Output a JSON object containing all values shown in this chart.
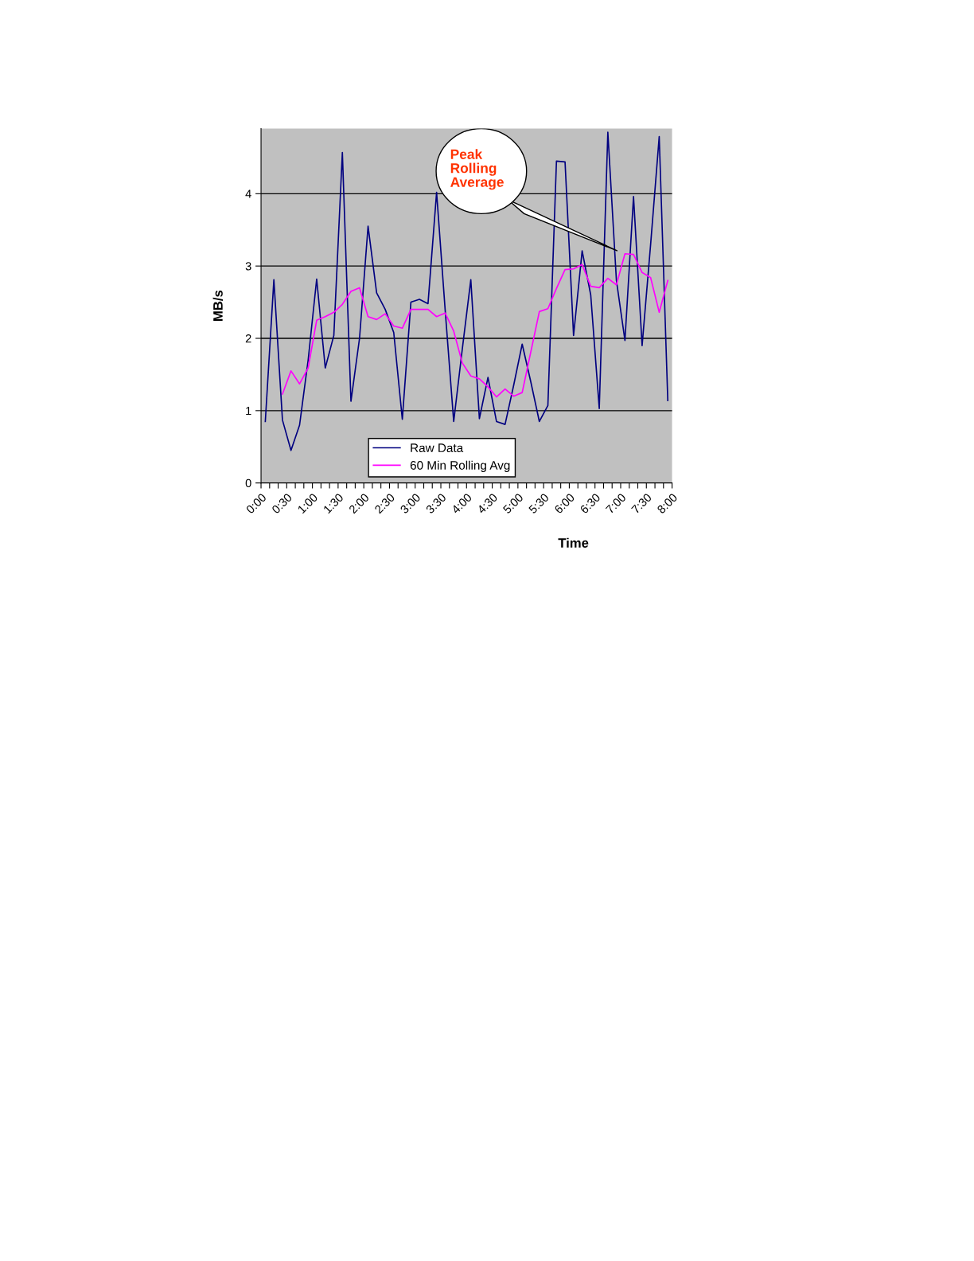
{
  "chart_data": {
    "type": "line",
    "xlabel": "Time",
    "ylabel": "MB/s",
    "x": [
      0.083,
      0.25,
      0.417,
      0.583,
      0.75,
      0.917,
      1.083,
      1.25,
      1.417,
      1.583,
      1.75,
      1.917,
      2.083,
      2.25,
      2.417,
      2.583,
      2.75,
      2.917,
      3.083,
      3.25,
      3.417,
      3.583,
      3.75,
      3.917,
      4.083,
      4.25,
      4.417,
      4.583,
      4.75,
      4.917,
      5.083,
      5.25,
      5.417,
      5.583,
      5.75,
      5.917,
      6.083,
      6.25,
      6.417,
      6.583,
      6.75,
      6.917,
      7.083,
      7.25,
      7.417,
      7.583,
      7.75,
      7.917
    ],
    "series": [
      {
        "name": "Raw Data",
        "color": "#000080",
        "values": [
          0.85,
          2.81,
          0.87,
          0.45,
          0.8,
          1.7,
          2.82,
          1.59,
          2.04,
          4.57,
          1.13,
          2.0,
          3.55,
          2.63,
          2.4,
          2.08,
          0.88,
          2.5,
          2.54,
          2.48,
          4.02,
          2.4,
          0.85,
          1.85,
          2.81,
          0.89,
          1.46,
          0.85,
          0.81,
          1.35,
          1.92,
          1.4,
          0.85,
          1.07,
          4.45,
          4.44,
          2.04,
          3.21,
          2.6,
          1.03,
          4.85,
          2.8,
          1.97,
          3.96,
          1.9,
          3.3,
          4.79,
          1.14
        ]
      },
      {
        "name": "60 Min Rolling Avg",
        "color": "#ff00ff",
        "values": [
          null,
          null,
          1.23,
          1.55,
          1.37,
          1.59,
          2.25,
          2.3,
          2.36,
          2.47,
          2.65,
          2.7,
          2.3,
          2.26,
          2.34,
          2.17,
          2.14,
          2.4,
          2.4,
          2.4,
          2.3,
          2.35,
          2.1,
          1.66,
          1.48,
          1.44,
          1.33,
          1.19,
          1.3,
          1.2,
          1.25,
          1.81,
          2.37,
          2.41,
          2.69,
          2.95,
          2.96,
          3.02,
          2.72,
          2.7,
          2.83,
          2.74,
          3.17,
          3.16,
          2.91,
          2.84,
          2.36,
          2.8
        ]
      }
    ],
    "xlim": [
      0,
      8
    ],
    "ylim": [
      0,
      4.9
    ],
    "yticks": [
      0,
      1,
      2,
      3,
      4
    ],
    "xticks": [
      {
        "value": 0,
        "label": "0:00"
      },
      {
        "value": 0.167,
        "label": null
      },
      {
        "value": 0.333,
        "label": null
      },
      {
        "value": 0.5,
        "label": "0:30"
      },
      {
        "value": 0.667,
        "label": null
      },
      {
        "value": 0.833,
        "label": null
      },
      {
        "value": 1,
        "label": "1:00"
      },
      {
        "value": 1.167,
        "label": null
      },
      {
        "value": 1.333,
        "label": null
      },
      {
        "value": 1.5,
        "label": "1:30"
      },
      {
        "value": 1.667,
        "label": null
      },
      {
        "value": 1.833,
        "label": null
      },
      {
        "value": 2,
        "label": "2:00"
      },
      {
        "value": 2.167,
        "label": null
      },
      {
        "value": 2.333,
        "label": null
      },
      {
        "value": 2.5,
        "label": "2:30"
      },
      {
        "value": 2.667,
        "label": null
      },
      {
        "value": 2.833,
        "label": null
      },
      {
        "value": 3,
        "label": "3:00"
      },
      {
        "value": 3.167,
        "label": null
      },
      {
        "value": 3.333,
        "label": null
      },
      {
        "value": 3.5,
        "label": "3:30"
      },
      {
        "value": 3.667,
        "label": null
      },
      {
        "value": 3.833,
        "label": null
      },
      {
        "value": 4,
        "label": "4:00"
      },
      {
        "value": 4.167,
        "label": null
      },
      {
        "value": 4.333,
        "label": null
      },
      {
        "value": 4.5,
        "label": "4:30"
      },
      {
        "value": 4.667,
        "label": null
      },
      {
        "value": 4.833,
        "label": null
      },
      {
        "value": 5,
        "label": "5:00"
      },
      {
        "value": 5.167,
        "label": null
      },
      {
        "value": 5.333,
        "label": null
      },
      {
        "value": 5.5,
        "label": "5:30"
      },
      {
        "value": 5.667,
        "label": null
      },
      {
        "value": 5.833,
        "label": null
      },
      {
        "value": 6,
        "label": "6:00"
      },
      {
        "value": 6.167,
        "label": null
      },
      {
        "value": 6.333,
        "label": null
      },
      {
        "value": 6.5,
        "label": "6:30"
      },
      {
        "value": 6.667,
        "label": null
      },
      {
        "value": 6.833,
        "label": null
      },
      {
        "value": 7,
        "label": "7:00"
      },
      {
        "value": 7.167,
        "label": null
      },
      {
        "value": 7.333,
        "label": null
      },
      {
        "value": 7.5,
        "label": "7:30"
      },
      {
        "value": 7.667,
        "label": null
      },
      {
        "value": 7.833,
        "label": null
      },
      {
        "value": 8,
        "label": "8:00"
      }
    ],
    "grid": "y",
    "legend": "bottom",
    "marker": "none",
    "line_style": "solid",
    "annotations": [
      "Peak\nRolling\nAverage"
    ]
  }
}
